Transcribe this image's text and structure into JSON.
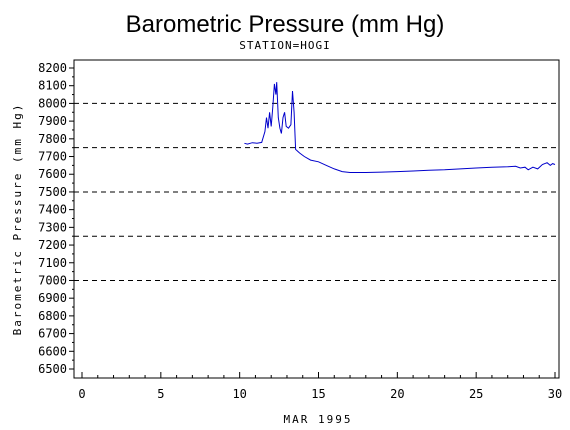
{
  "chart_data": {
    "type": "line",
    "title": "Barometric Pressure (mm Hg)",
    "subtitle": "STATION=HOGI",
    "xlabel": "MAR 1995",
    "ylabel": "Barometric Pressure (mm Hg)",
    "xlim": [
      0,
      30
    ],
    "ylim": [
      6500,
      8200
    ],
    "x_ticks": [
      0,
      5,
      10,
      15,
      20,
      25,
      30
    ],
    "y_ticks": [
      6500,
      6600,
      6700,
      6800,
      6900,
      7000,
      7100,
      7200,
      7300,
      7400,
      7500,
      7600,
      7700,
      7800,
      7900,
      8000,
      8100,
      8200
    ],
    "reference_lines": [
      8000,
      7750,
      7500,
      7250,
      7000
    ],
    "colors": {
      "line": "#0000cc",
      "reference": "#000000"
    },
    "series": [
      {
        "values": [
          [
            10.3,
            7775
          ],
          [
            10.5,
            7770
          ],
          [
            10.8,
            7778
          ],
          [
            11.1,
            7775
          ],
          [
            11.4,
            7780
          ],
          [
            11.6,
            7840
          ],
          [
            11.7,
            7920
          ],
          [
            11.8,
            7860
          ],
          [
            11.9,
            7950
          ],
          [
            12.0,
            7870
          ],
          [
            12.1,
            7980
          ],
          [
            12.2,
            8110
          ],
          [
            12.3,
            8050
          ],
          [
            12.35,
            8120
          ],
          [
            12.45,
            7920
          ],
          [
            12.55,
            7860
          ],
          [
            12.65,
            7830
          ],
          [
            12.75,
            7920
          ],
          [
            12.85,
            7950
          ],
          [
            12.95,
            7870
          ],
          [
            13.1,
            7860
          ],
          [
            13.25,
            7880
          ],
          [
            13.35,
            8070
          ],
          [
            13.45,
            7950
          ],
          [
            13.55,
            7740
          ],
          [
            13.8,
            7720
          ],
          [
            14.1,
            7700
          ],
          [
            14.5,
            7680
          ],
          [
            15.0,
            7670
          ],
          [
            15.5,
            7650
          ],
          [
            16.0,
            7630
          ],
          [
            16.5,
            7615
          ],
          [
            17.0,
            7610
          ],
          [
            18.0,
            7610
          ],
          [
            19.0,
            7612
          ],
          [
            20.0,
            7615
          ],
          [
            21.0,
            7618
          ],
          [
            22.0,
            7622
          ],
          [
            23.0,
            7625
          ],
          [
            24.0,
            7630
          ],
          [
            25.0,
            7635
          ],
          [
            26.0,
            7640
          ],
          [
            27.0,
            7642
          ],
          [
            27.5,
            7645
          ],
          [
            27.8,
            7635
          ],
          [
            28.1,
            7640
          ],
          [
            28.3,
            7625
          ],
          [
            28.6,
            7640
          ],
          [
            28.9,
            7630
          ],
          [
            29.2,
            7655
          ],
          [
            29.5,
            7665
          ],
          [
            29.7,
            7650
          ],
          [
            29.85,
            7660
          ],
          [
            30.0,
            7655
          ]
        ]
      }
    ]
  }
}
